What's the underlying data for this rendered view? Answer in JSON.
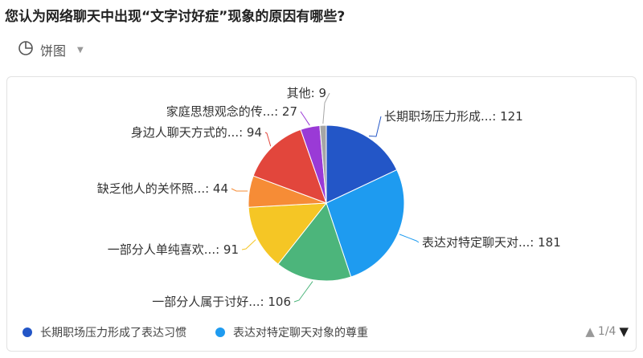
{
  "question": "您认为网络聊天中出现“文字讨好症”现象的原因有哪些?",
  "chart_type": {
    "label": "饼图",
    "icon": "pie-chart-icon"
  },
  "chart_data": {
    "type": "pie",
    "slices": [
      {
        "label": "长期职场压力形成...: 121",
        "value": 121,
        "color": "#2356c7"
      },
      {
        "label": "表达对特定聊天对...: 181",
        "value": 181,
        "color": "#1e9bf0"
      },
      {
        "label": "一部分人属于讨好...: 106",
        "value": 106,
        "color": "#4cb57b"
      },
      {
        "label": "一部分人单纯喜欢...: 91",
        "value": 91,
        "color": "#f5c625"
      },
      {
        "label": "缺乏他人的关怀照...: 44",
        "value": 44,
        "color": "#f68c36"
      },
      {
        "label": "身边人聊天方式的...: 94",
        "value": 94,
        "color": "#e2463c"
      },
      {
        "label": "家庭思想观念的传...: 27",
        "value": 27,
        "color": "#9a3ad6"
      },
      {
        "label": "其他: 9",
        "value": 9,
        "color": "#a6a6a6"
      }
    ]
  },
  "legend": {
    "items": [
      {
        "label": "长期职场压力形成了表达习惯",
        "color": "#2356c7"
      },
      {
        "label": "表达对特定聊天对象的尊重",
        "color": "#1e9bf0"
      }
    ]
  },
  "pager": {
    "up": "▲",
    "text": "1/4",
    "down": "▼"
  }
}
